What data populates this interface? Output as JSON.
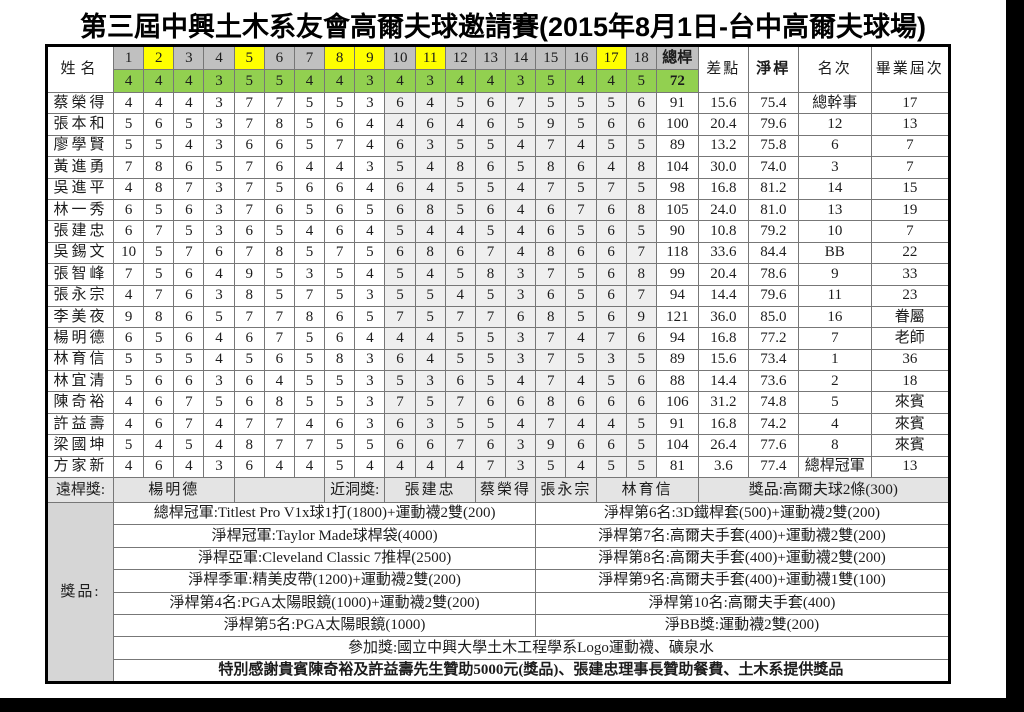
{
  "title": "第三屆中興土木系友會高爾夫球邀請賽(2015年8月1日-台中高爾夫球場)",
  "table": {
    "name_header": "姓名",
    "total_header": "總桿",
    "total_par": "72",
    "handicap_header": "差點",
    "net_header": "淨桿",
    "rank_header": "名次",
    "grad_header": "畢業屆次",
    "holes": [
      {
        "num": "1",
        "par": "4",
        "special": false
      },
      {
        "num": "2",
        "par": "4",
        "special": true
      },
      {
        "num": "3",
        "par": "4",
        "special": false
      },
      {
        "num": "4",
        "par": "3",
        "special": false
      },
      {
        "num": "5",
        "par": "5",
        "special": true
      },
      {
        "num": "6",
        "par": "5",
        "special": false
      },
      {
        "num": "7",
        "par": "4",
        "special": false
      },
      {
        "num": "8",
        "par": "4",
        "special": true
      },
      {
        "num": "9",
        "par": "3",
        "special": true
      },
      {
        "num": "10",
        "par": "4",
        "special": false
      },
      {
        "num": "11",
        "par": "3",
        "special": true
      },
      {
        "num": "12",
        "par": "4",
        "special": false
      },
      {
        "num": "13",
        "par": "4",
        "special": false
      },
      {
        "num": "14",
        "par": "3",
        "special": false
      },
      {
        "num": "15",
        "par": "5",
        "special": false
      },
      {
        "num": "16",
        "par": "4",
        "special": false
      },
      {
        "num": "17",
        "par": "4",
        "special": true
      },
      {
        "num": "18",
        "par": "5",
        "special": false
      }
    ],
    "players": [
      {
        "name": "蔡榮得",
        "scores": [
          4,
          4,
          4,
          3,
          7,
          7,
          5,
          5,
          3,
          6,
          4,
          5,
          6,
          7,
          5,
          5,
          5,
          6
        ],
        "total": "91",
        "diff": "15.6",
        "net": "75.4",
        "rank": "總幹事",
        "grad": "17"
      },
      {
        "name": "張本和",
        "scores": [
          5,
          6,
          5,
          3,
          7,
          8,
          5,
          6,
          4,
          4,
          6,
          4,
          6,
          5,
          9,
          5,
          6,
          6
        ],
        "total": "100",
        "diff": "20.4",
        "net": "79.6",
        "rank": "12",
        "grad": "13"
      },
      {
        "name": "廖學賢",
        "scores": [
          5,
          5,
          4,
          3,
          6,
          6,
          5,
          7,
          4,
          6,
          3,
          5,
          5,
          4,
          7,
          4,
          5,
          5
        ],
        "total": "89",
        "diff": "13.2",
        "net": "75.8",
        "rank": "6",
        "grad": "7"
      },
      {
        "name": "黃進勇",
        "scores": [
          7,
          8,
          6,
          5,
          7,
          6,
          4,
          4,
          3,
          5,
          4,
          8,
          6,
          5,
          8,
          6,
          4,
          8
        ],
        "total": "104",
        "diff": "30.0",
        "net": "74.0",
        "rank": "3",
        "grad": "7"
      },
      {
        "name": "吳進平",
        "scores": [
          4,
          8,
          7,
          3,
          7,
          5,
          6,
          6,
          4,
          6,
          4,
          5,
          5,
          4,
          7,
          5,
          7,
          5
        ],
        "total": "98",
        "diff": "16.8",
        "net": "81.2",
        "rank": "14",
        "grad": "15"
      },
      {
        "name": "林一秀",
        "scores": [
          6,
          5,
          6,
          3,
          7,
          6,
          5,
          6,
          5,
          6,
          8,
          5,
          6,
          4,
          6,
          7,
          6,
          8
        ],
        "total": "105",
        "diff": "24.0",
        "net": "81.0",
        "rank": "13",
        "grad": "19"
      },
      {
        "name": "張建忠",
        "scores": [
          6,
          7,
          5,
          3,
          6,
          5,
          4,
          6,
          4,
          5,
          4,
          4,
          5,
          4,
          6,
          5,
          6,
          5
        ],
        "total": "90",
        "diff": "10.8",
        "net": "79.2",
        "rank": "10",
        "grad": "7"
      },
      {
        "name": "吳錫文",
        "scores": [
          10,
          5,
          7,
          6,
          7,
          8,
          5,
          7,
          5,
          6,
          8,
          6,
          7,
          4,
          8,
          6,
          6,
          7
        ],
        "total": "118",
        "diff": "33.6",
        "net": "84.4",
        "rank": "BB",
        "grad": "22"
      },
      {
        "name": "張智峰",
        "scores": [
          7,
          5,
          6,
          4,
          9,
          5,
          3,
          5,
          4,
          5,
          4,
          5,
          8,
          3,
          7,
          5,
          6,
          8
        ],
        "total": "99",
        "diff": "20.4",
        "net": "78.6",
        "rank": "9",
        "grad": "33"
      },
      {
        "name": "張永宗",
        "scores": [
          4,
          7,
          6,
          3,
          8,
          5,
          7,
          5,
          3,
          5,
          5,
          4,
          5,
          3,
          6,
          5,
          6,
          7
        ],
        "total": "94",
        "diff": "14.4",
        "net": "79.6",
        "rank": "11",
        "grad": "23"
      },
      {
        "name": "李美夜",
        "scores": [
          9,
          8,
          6,
          5,
          7,
          7,
          8,
          6,
          5,
          7,
          5,
          7,
          7,
          6,
          8,
          5,
          6,
          9
        ],
        "total": "121",
        "diff": "36.0",
        "net": "85.0",
        "rank": "16",
        "grad": "眷屬"
      },
      {
        "name": "楊明德",
        "scores": [
          6,
          5,
          6,
          4,
          6,
          7,
          5,
          6,
          4,
          4,
          4,
          5,
          5,
          3,
          7,
          4,
          7,
          6
        ],
        "total": "94",
        "diff": "16.8",
        "net": "77.2",
        "rank": "7",
        "grad": "老師"
      },
      {
        "name": "林育信",
        "scores": [
          5,
          5,
          5,
          4,
          5,
          6,
          5,
          8,
          3,
          6,
          4,
          5,
          5,
          3,
          7,
          5,
          3,
          5
        ],
        "total": "89",
        "diff": "15.6",
        "net": "73.4",
        "rank": "1",
        "grad": "36"
      },
      {
        "name": "林宜清",
        "scores": [
          5,
          6,
          6,
          3,
          6,
          4,
          5,
          5,
          3,
          5,
          3,
          6,
          5,
          4,
          7,
          4,
          5,
          6
        ],
        "total": "88",
        "diff": "14.4",
        "net": "73.6",
        "rank": "2",
        "grad": "18"
      },
      {
        "name": "陳奇裕",
        "scores": [
          4,
          6,
          7,
          5,
          6,
          8,
          5,
          5,
          3,
          7,
          5,
          7,
          6,
          6,
          8,
          6,
          6,
          6
        ],
        "total": "106",
        "diff": "31.2",
        "net": "74.8",
        "rank": "5",
        "grad": "來賓"
      },
      {
        "name": "許益壽",
        "scores": [
          4,
          6,
          7,
          4,
          7,
          7,
          4,
          6,
          3,
          6,
          3,
          5,
          5,
          4,
          7,
          4,
          4,
          5
        ],
        "total": "91",
        "diff": "16.8",
        "net": "74.2",
        "rank": "4",
        "grad": "來賓"
      },
      {
        "name": "梁國坤",
        "scores": [
          5,
          4,
          5,
          4,
          8,
          7,
          7,
          5,
          5,
          6,
          6,
          7,
          6,
          3,
          9,
          6,
          6,
          5
        ],
        "total": "104",
        "diff": "26.4",
        "net": "77.6",
        "rank": "8",
        "grad": "來賓"
      },
      {
        "name": "方家新",
        "scores": [
          4,
          6,
          4,
          3,
          6,
          4,
          4,
          5,
          4,
          4,
          4,
          4,
          7,
          3,
          5,
          4,
          5,
          5
        ],
        "total": "81",
        "diff": "3.6",
        "net": "77.4",
        "rank": "總桿冠軍",
        "grad": "13"
      }
    ]
  },
  "awards_row": {
    "long_drive_label": "遠桿獎:",
    "long_drive_winner": "楊明德",
    "closest_pin_label": "近洞獎:",
    "closest_pin_winners": [
      "張建忠",
      "蔡榮得",
      "張永宗",
      "林育信"
    ],
    "prize_note": "獎品:高爾夫球2條(300)"
  },
  "prizes": {
    "label": "獎品:",
    "left": [
      "總桿冠軍:Titlest Pro V1x球1打(1800)+運動襪2雙(200)",
      "淨桿冠軍:Taylor Made球桿袋(4000)",
      "淨桿亞軍:Cleveland Classic 7推桿(2500)",
      "淨桿季軍:精美皮帶(1200)+運動襪2雙(200)",
      "淨桿第4名:PGA太陽眼鏡(1000)+運動襪2雙(200)",
      "淨桿第5名:PGA太陽眼鏡(1000)"
    ],
    "right": [
      "淨桿第6名:3D鐵桿套(500)+運動襪2雙(200)",
      "淨桿第7名:高爾夫手套(400)+運動襪2雙(200)",
      "淨桿第8名:高爾夫手套(400)+運動襪2雙(200)",
      "淨桿第9名:高爾夫手套(400)+運動襪1雙(100)",
      "淨桿第10名:高爾夫手套(400)",
      "淨BB獎:運動襪2雙(200)"
    ],
    "participation": "參加獎:國立中興大學土木工程學系Logo運動襪、礦泉水",
    "thanks": "特別感謝貴賓陳奇裕及許益壽先生贊助5000元(獎品)、張建忠理事長贊助餐費、土木系提供獎品"
  },
  "colors": {
    "header_gray": "#c0c0c0",
    "highlight_yellow": "#ffff00",
    "highlight_red": "#e00000",
    "par_green": "#92d050",
    "back_nine_gray": "#efefef",
    "awards_gray": "#e4e4e4",
    "label_gray": "#c3c3c3",
    "thanks_red": "#ff0000"
  }
}
